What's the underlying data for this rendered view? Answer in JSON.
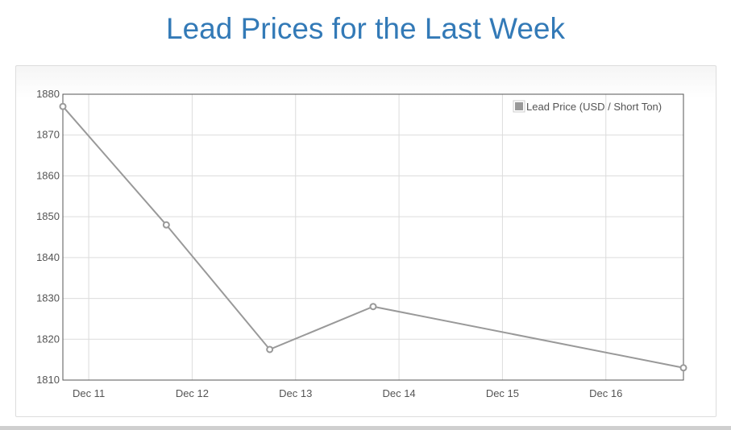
{
  "page": {
    "title": "Lead Prices for the Last Week"
  },
  "chart_data": {
    "type": "line",
    "title": "Lead Prices for the Last Week",
    "xlabel": "",
    "ylabel": "",
    "x_tick_labels": [
      "Dec 11",
      "Dec 12",
      "Dec 13",
      "Dec 14",
      "Dec 15",
      "Dec 16"
    ],
    "x_tick_days": [
      11,
      12,
      13,
      14,
      15,
      16
    ],
    "xlim": [
      10.75,
      16.75
    ],
    "ylim": [
      1810,
      1880
    ],
    "y_ticks": [
      1810,
      1820,
      1830,
      1840,
      1850,
      1860,
      1870,
      1880
    ],
    "grid": true,
    "legend_position": "top-right",
    "series": [
      {
        "name": "Lead Price (USD / Short Ton)",
        "color": "#999999",
        "x": [
          10.75,
          11.75,
          12.75,
          13.75,
          16.75
        ],
        "values": [
          1877,
          1848,
          1817.5,
          1828,
          1813
        ]
      }
    ]
  }
}
